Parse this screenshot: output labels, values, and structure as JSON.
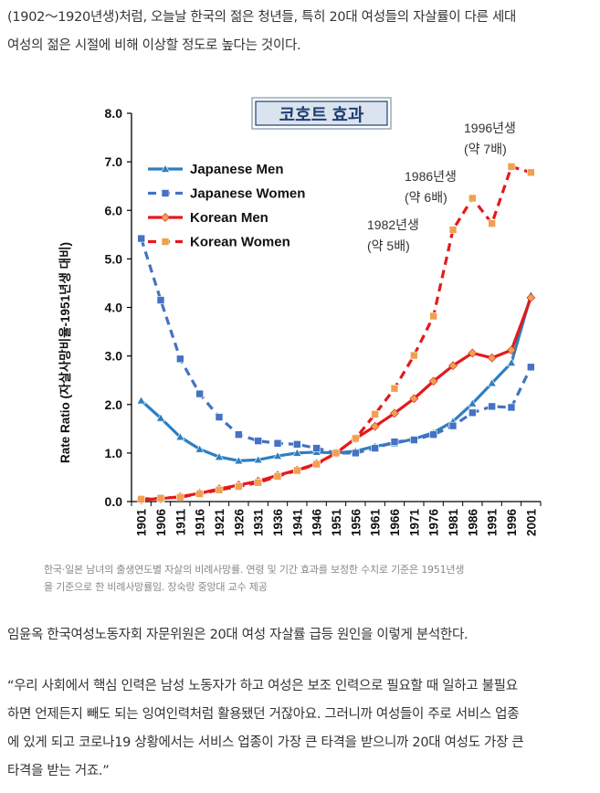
{
  "article": {
    "intro_lines": [
      "(1902～1920년생)처럼, 오늘날 한국의 젊은 청년들, 특히 20대 여성들의 자살률이 다른 세대",
      "여성의 젊은 시절에 비해 이상할 정도로 높다는 것이다."
    ],
    "caption_lines": [
      "한국·일본 남녀의 출생연도별 자살의 비례사망률. 연령 및 기간 효과를 보정한 수치로 기준은 1951년생",
      "을 기준으로 한 비례사망률임. 장숙랑 중앙대 교수 제공"
    ],
    "paragraph2": "임윤옥 한국여성노동자회 자문위원은 20대 여성 자살률 급등 원인을 이렇게 분석한다.",
    "quote_lines": [
      "“우리 사회에서 핵심 인력은 남성 노동자가 하고 여성은 보조 인력으로 필요할 때 일하고 불필요",
      "하면 언제든지 빼도 되는 잉여인력처럼 활용됐던 거잖아요. 그러니까 여성들이 주로 서비스 업종",
      "에 있게 되고 코로나19 상황에서는 서비스 업종이 가장 큰 타격을 받으니까 20대 여성도 가장 큰",
      "타격을 받는 거죠.”"
    ]
  },
  "chart_data": {
    "type": "line",
    "title": "코호트 효과",
    "xlabel": "",
    "ylabel": "Rate Ratio (자살사망비율-1951년생 대비)",
    "ylim": [
      0,
      8
    ],
    "yticks": [
      "0.0",
      "1.0",
      "2.0",
      "3.0",
      "4.0",
      "5.0",
      "6.0",
      "7.0",
      "8.0"
    ],
    "categories": [
      "1901",
      "1906",
      "1911",
      "1916",
      "1921",
      "1926",
      "1931",
      "1936",
      "1941",
      "1946",
      "1951",
      "1956",
      "1961",
      "1966",
      "1971",
      "1976",
      "1981",
      "1986",
      "1991",
      "1996",
      "2001"
    ],
    "legend_position": "top-left",
    "series": [
      {
        "name": "Japanese Men",
        "color": "#2e7fc0",
        "dashed": false,
        "marker": "triangle",
        "values": [
          2.08,
          1.72,
          1.33,
          1.08,
          0.92,
          0.84,
          0.86,
          0.94,
          1.0,
          1.02,
          1.0,
          1.04,
          1.14,
          1.2,
          1.29,
          1.42,
          1.65,
          2.02,
          2.44,
          2.86,
          4.25
        ]
      },
      {
        "name": "Japanese Women",
        "color": "#4472c4",
        "dashed": true,
        "marker": "square",
        "values": [
          5.42,
          4.15,
          2.94,
          2.22,
          1.74,
          1.38,
          1.25,
          1.2,
          1.18,
          1.1,
          1.0,
          1.0,
          1.1,
          1.23,
          1.27,
          1.38,
          1.56,
          1.83,
          1.96,
          1.94,
          2.77
        ]
      },
      {
        "name": "Korean Men",
        "color": "#e31a1c",
        "dashed": false,
        "marker": "diamond",
        "values": [
          0.04,
          0.06,
          0.1,
          0.17,
          0.26,
          0.34,
          0.42,
          0.54,
          0.65,
          0.78,
          1.0,
          1.3,
          1.55,
          1.82,
          2.12,
          2.48,
          2.8,
          3.06,
          2.96,
          3.12,
          4.2
        ]
      },
      {
        "name": "Korean Women",
        "color": "#e31a1c",
        "dashed": true,
        "marker": "square",
        "values": [
          0.05,
          0.07,
          0.09,
          0.16,
          0.24,
          0.31,
          0.39,
          0.52,
          0.64,
          0.77,
          1.0,
          1.3,
          1.8,
          2.33,
          3.01,
          3.82,
          5.6,
          6.25,
          5.73,
          6.9,
          6.78
        ]
      }
    ],
    "annotations": [
      {
        "line1": "1982년생",
        "line2": "(약 5배)"
      },
      {
        "line1": "1986년생",
        "line2": "(약 6배)"
      },
      {
        "line1": "1996년생",
        "line2": "(약 7배)"
      }
    ]
  }
}
